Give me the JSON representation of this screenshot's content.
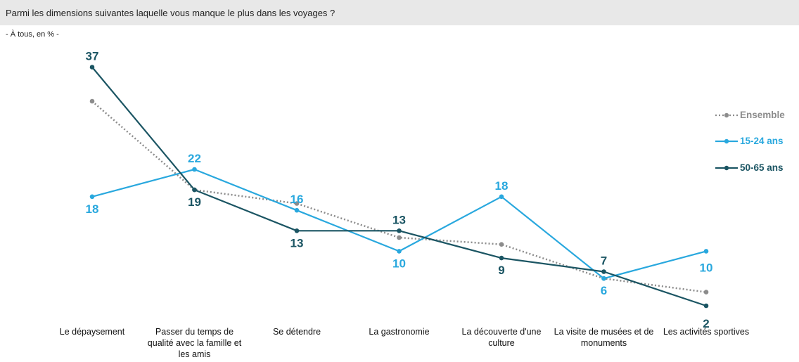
{
  "header": {
    "title": "Parmi les dimensions suivantes laquelle vous manque le plus dans les voyages ?",
    "subtitle": "- À tous, en % -"
  },
  "chart_data": {
    "type": "line",
    "categories": [
      "Le dépaysement",
      "Passer du temps de qualité avec la famille et les amis",
      "Se détendre",
      "La gastronomie",
      "La découverte d'une culture",
      "La visite de musées et de monuments",
      "Les activités sportives"
    ],
    "series": [
      {
        "name": "Ensemble",
        "values": [
          32,
          19,
          17,
          12,
          11,
          6,
          4
        ],
        "color": "#8c8c8c",
        "style": "dotted",
        "labeled": false
      },
      {
        "name": "15-24 ans",
        "values": [
          18,
          22,
          16,
          10,
          18,
          6,
          10
        ],
        "color": "#29a8de",
        "style": "solid",
        "labeled": true
      },
      {
        "name": "50-65 ans",
        "values": [
          37,
          19,
          13,
          13,
          9,
          7,
          2
        ],
        "color": "#1b5563",
        "style": "solid",
        "labeled": true
      }
    ],
    "ylim": [
      0,
      40
    ],
    "grid": false,
    "legend": "right"
  }
}
